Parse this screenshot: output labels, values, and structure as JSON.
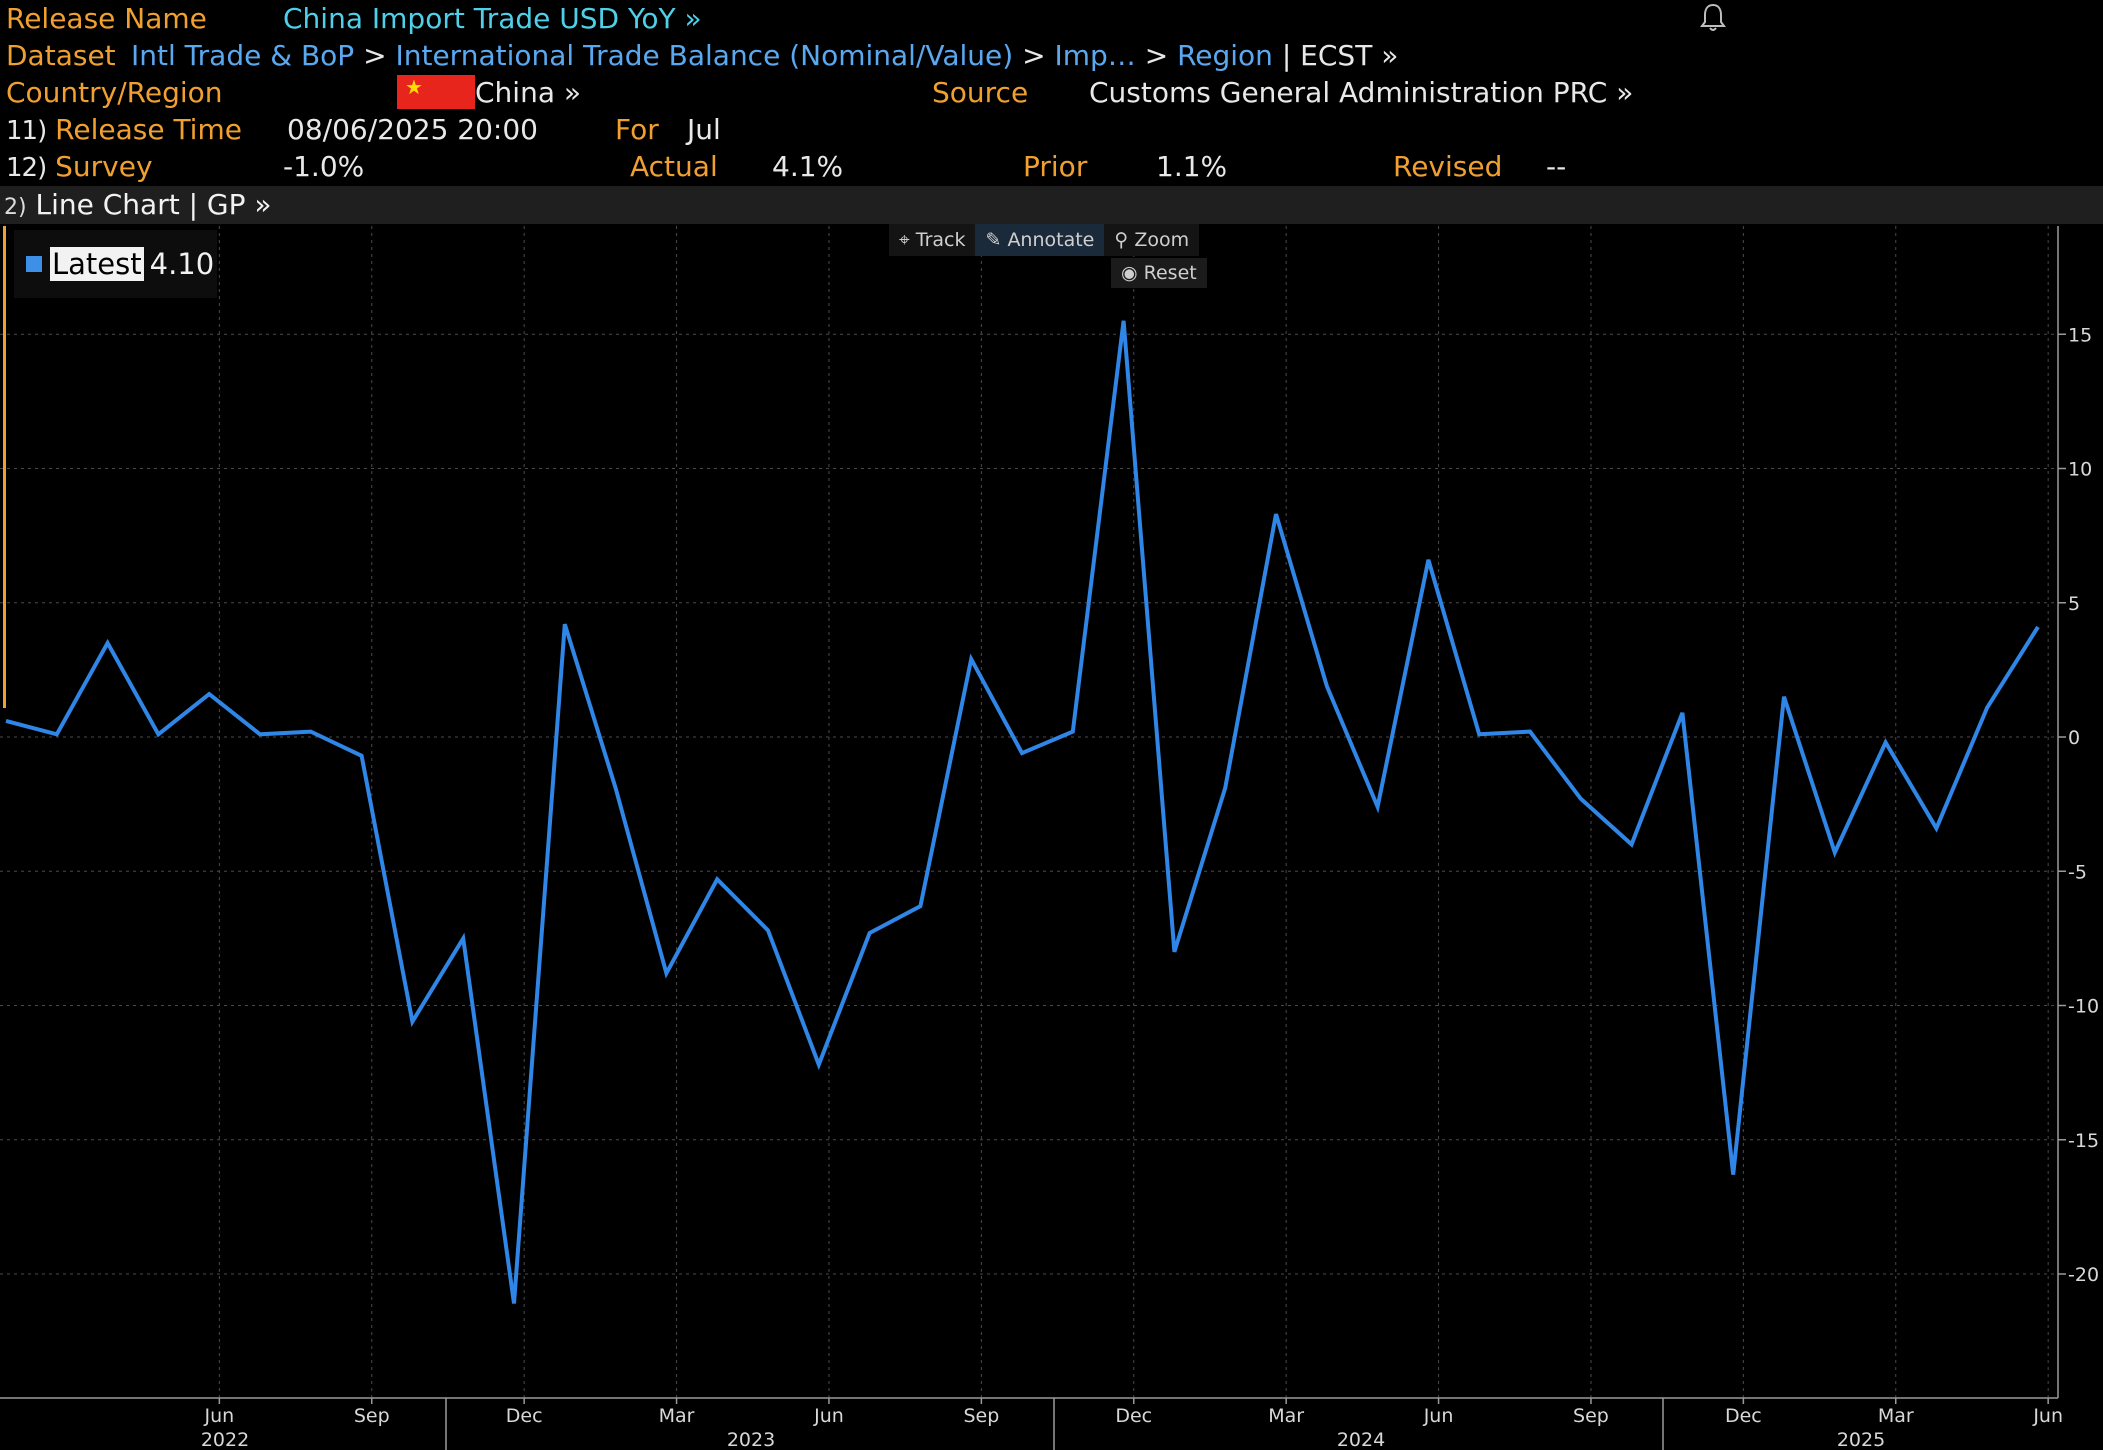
{
  "header": {
    "release_name_label": "Release Name",
    "release_name": "China Import Trade USD YoY »",
    "dataset_label": "Dataset",
    "dataset_path": [
      "Intl Trade & BoP",
      "International Trade Balance (Nominal/Value)",
      "Imp…",
      "Region"
    ],
    "dataset_suffix": "| ECST »",
    "country_label": "Country/Region",
    "country": "China »",
    "source_label": "Source",
    "source": "Customs General Administration PRC »",
    "release_time_num": "11)",
    "release_time_label": "Release Time",
    "release_time": "08/06/2025 20:00",
    "for_label": "For",
    "for_value": "Jul",
    "survey_num": "12)",
    "survey_label": "Survey",
    "survey": "-1.0%",
    "actual_label": "Actual",
    "actual": "4.1%",
    "prior_label": "Prior",
    "prior": "1.1%",
    "revised_label": "Revised",
    "revised": "--"
  },
  "chart_bar": {
    "num": "2)",
    "label": "Line Chart | GP »"
  },
  "toolbar": {
    "track": "Track",
    "annotate": "Annotate",
    "zoom": "Zoom",
    "reset": "Reset"
  },
  "legend": {
    "label": "Latest",
    "value": "4.10"
  },
  "colors": {
    "line": "#2f86e6",
    "label": "#f0a030",
    "link": "#5aa8f0",
    "title": "#4fd0e8"
  },
  "chart_data": {
    "type": "line",
    "title": "",
    "xlabel": "",
    "ylabel": "",
    "ylim": [
      -25,
      19
    ],
    "yticks": [
      15,
      10,
      5,
      0,
      -5,
      -10,
      -15,
      -20
    ],
    "grid": true,
    "legend": "top-left",
    "month_labels": [
      "Jun",
      "Sep",
      "Dec",
      "Mar",
      "Jun",
      "Sep",
      "Dec",
      "Mar",
      "Jun",
      "Sep",
      "Dec",
      "Mar",
      "Jun"
    ],
    "year_labels": [
      "2022",
      "2023",
      "2024",
      "2025"
    ],
    "series": [
      {
        "name": "Latest",
        "x": [
          "2022-03",
          "2022-04",
          "2022-05",
          "2022-06",
          "2022-07",
          "2022-08",
          "2022-09",
          "2022-10",
          "2022-11",
          "2022-12",
          "2023-01",
          "2023-02",
          "2023-03",
          "2023-04",
          "2023-05",
          "2023-06",
          "2023-07",
          "2023-08",
          "2023-09",
          "2023-10",
          "2023-11",
          "2023-12",
          "2024-01",
          "2024-02",
          "2024-03",
          "2024-04",
          "2024-05",
          "2024-06",
          "2024-07",
          "2024-08",
          "2024-09",
          "2024-10",
          "2024-11",
          "2024-12",
          "2025-01",
          "2025-02",
          "2025-03",
          "2025-04",
          "2025-05",
          "2025-06",
          "2025-07"
        ],
        "values": [
          0.6,
          0.1,
          3.5,
          0.1,
          1.6,
          0.1,
          0.2,
          -0.7,
          -10.6,
          -7.5,
          -21.1,
          4.2,
          -1.9,
          -8.8,
          -5.3,
          -7.2,
          -12.2,
          -7.3,
          -6.3,
          2.9,
          -0.6,
          0.2,
          15.5,
          -8.0,
          -1.9,
          8.3,
          1.9,
          -2.6,
          6.6,
          0.1,
          0.2,
          -2.3,
          -4.0,
          0.9,
          -16.3,
          1.5,
          -4.3,
          -0.2,
          -3.4,
          1.1,
          4.1
        ]
      }
    ]
  }
}
